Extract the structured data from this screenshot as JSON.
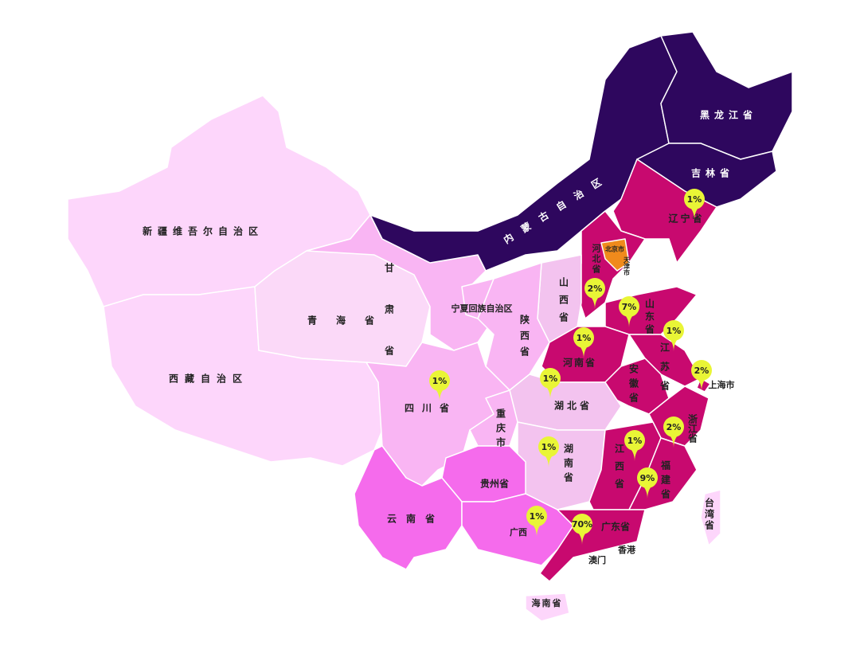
{
  "labels": [
    "新疆维吾尔自治区",
    "黑龙江省",
    "吉林省",
    "辽宁省",
    "内蒙古自治区",
    "河北省",
    "北京市",
    "天津市",
    "山西省",
    "山东省",
    "江苏省",
    "甘肃省",
    "宁夏回族自治区",
    "陕西省",
    "青海省",
    "西藏自治区",
    "四川省",
    "重庆市",
    "河南省",
    "湖北省",
    "安徽省",
    "浙江省",
    "上海市",
    "湖南省",
    "江西省",
    "福建省",
    "贵州省",
    "云南省",
    "广西",
    "广东省",
    "香港",
    "澳门",
    "海南省",
    "台湾省"
  ],
  "pins": [
    "1%",
    "2%",
    "7%",
    "1%",
    "1%",
    "2%",
    "1%",
    "1%",
    "2%",
    "1%",
    "1%",
    "9%",
    "1%",
    "70%"
  ]
}
